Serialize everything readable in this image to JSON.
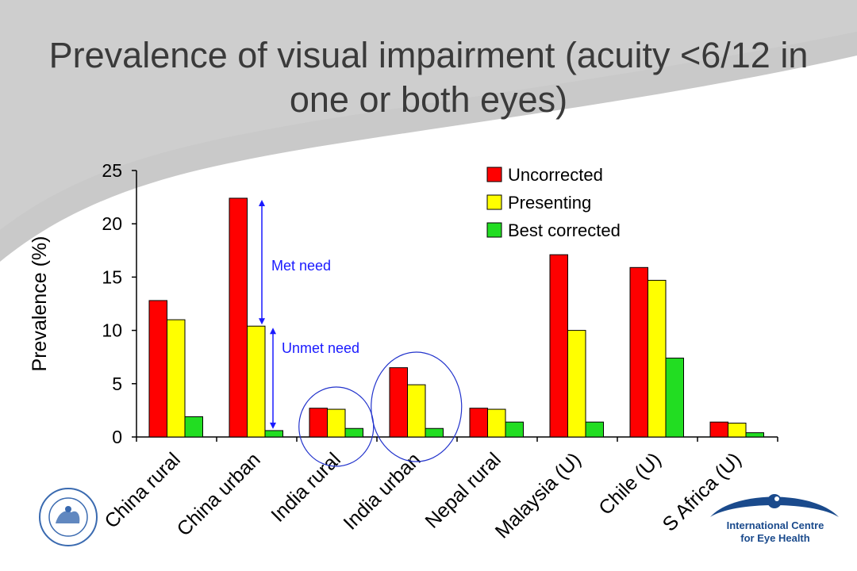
{
  "slide": {
    "title": "Prevalence of visual impairment (acuity <6/12 in one or both eyes)",
    "logo_right_line1": "International Centre",
    "logo_right_line2": "for Eye Health"
  },
  "colors": {
    "uncorrected": "#ff0000",
    "presenting": "#ffff00",
    "best_corrected": "#22dd22",
    "annotation": "#1a1aff",
    "background_swoosh": "#c9c9c9",
    "logo_blue": "#1a4a8c"
  },
  "chart_data": {
    "type": "bar",
    "title": "",
    "xlabel": "",
    "ylabel": "Prevalence (%)",
    "ylim": [
      0,
      25
    ],
    "yticks": [
      0,
      5,
      10,
      15,
      20,
      25
    ],
    "grid": false,
    "legend_position": "top-right",
    "categories": [
      "China rural",
      "China urban",
      "India rural",
      "India urban",
      "Nepal  rural",
      "Malaysia (U)",
      "Chile (U)",
      "S Africa (U)"
    ],
    "series": [
      {
        "name": "Uncorrected",
        "values": [
          12.8,
          22.4,
          2.7,
          6.5,
          2.7,
          17.1,
          15.9,
          1.4
        ]
      },
      {
        "name": "Presenting",
        "values": [
          11.0,
          10.4,
          2.6,
          4.9,
          2.6,
          10.0,
          14.7,
          1.3
        ]
      },
      {
        "name": "Best corrected",
        "values": [
          1.9,
          0.6,
          0.8,
          0.8,
          1.4,
          1.4,
          7.4,
          0.4
        ]
      }
    ],
    "annotations": [
      {
        "text": "Met need",
        "from": 10.4,
        "to": 22.4,
        "category": "China urban"
      },
      {
        "text": "Unmet need",
        "from": 0.6,
        "to": 10.4,
        "category": "China urban"
      }
    ],
    "highlighted_categories": [
      "India rural",
      "India urban"
    ]
  }
}
